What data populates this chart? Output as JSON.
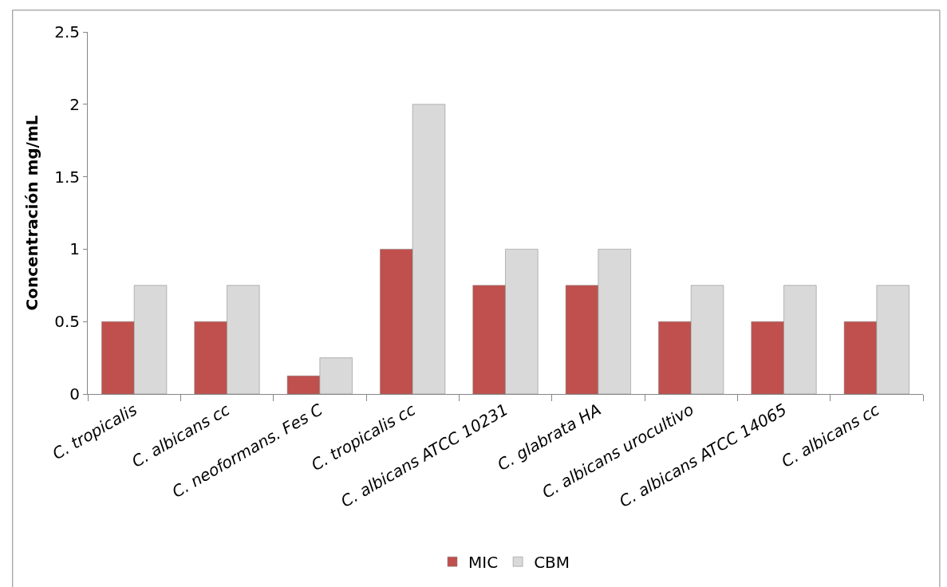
{
  "chart_data": {
    "type": "bar",
    "ylabel": "Concentración mg/mL",
    "categories": [
      "C. tropicalis",
      "C. albicans cc",
      "C. neoformans. Fes C",
      "C. tropicalis cc",
      "C. albicans ATCC 10231",
      "C. glabrata HA",
      "C. albicans urocultivo",
      "C. albicans ATCC 14065",
      "C. albicans cc"
    ],
    "series": [
      {
        "name": "MIC",
        "color": "#c0504d",
        "values": [
          0.5,
          0.5,
          0.125,
          1,
          0.75,
          0.75,
          0.5,
          0.5,
          0.5
        ]
      },
      {
        "name": "CBM",
        "color": "#d9d9d9",
        "values": [
          0.75,
          0.75,
          0.25,
          2,
          1,
          1,
          0.75,
          0.75,
          0.75
        ]
      }
    ],
    "ylim": [
      0,
      2.5
    ],
    "yticks": [
      0,
      0.5,
      1,
      1.5,
      2,
      2.5
    ],
    "legend": "bottom"
  }
}
